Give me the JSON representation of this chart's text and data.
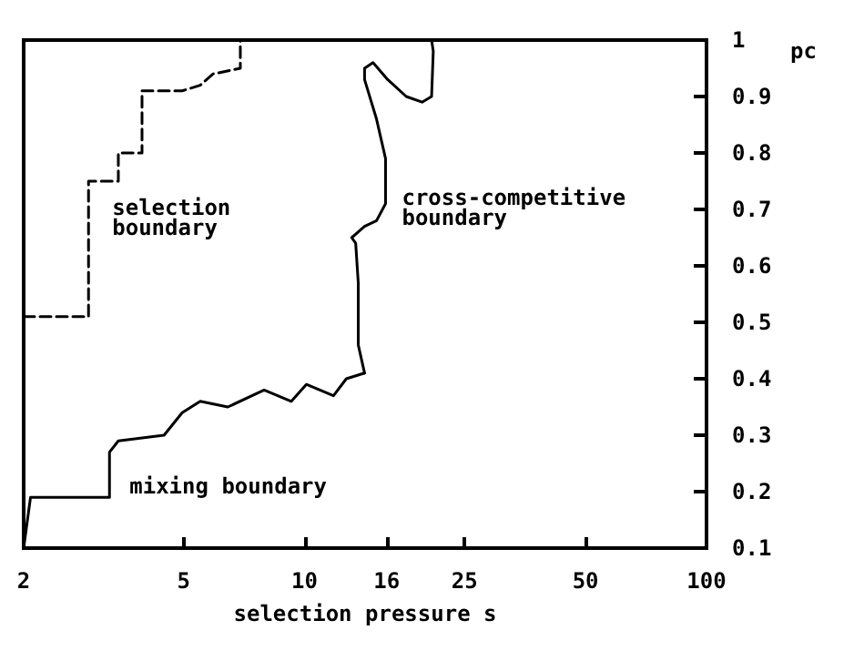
{
  "chart_data": {
    "type": "line",
    "xlabel": "selection pressure s",
    "ylabel": "pc",
    "log": "x",
    "xlim": [
      2,
      100
    ],
    "xticks": [
      2,
      5,
      10,
      16,
      25,
      50,
      100
    ],
    "ylim": [
      0.1,
      1
    ],
    "yticks": [
      0.1,
      0.2,
      0.3,
      0.4,
      0.5,
      0.6,
      0.7,
      0.8,
      0.9,
      1
    ],
    "grid": false,
    "series": [
      {
        "name": "selection boundary",
        "color": "#000000",
        "line_style": "dashed",
        "x": [
          2,
          2.9,
          2.9,
          3.44,
          3.44,
          3.62,
          3.94,
          3.94,
          4.96,
          5.5,
          5.92,
          6.92,
          6.92
        ],
        "values": [
          0.51,
          0.51,
          0.75,
          0.75,
          0.8,
          0.8,
          0.8,
          0.91,
          0.91,
          0.92,
          0.94,
          0.95,
          1.0
        ]
      },
      {
        "name": "mixing boundary",
        "color": "#000000",
        "line_style": "solid",
        "x": [
          2,
          2.08,
          3.04,
          3.27,
          3.27,
          3.44,
          4.47,
          4.96,
          5.5,
          6.44,
          7.93,
          9.27,
          10.1,
          11.8,
          12.7,
          14.1
        ],
        "values": [
          0.1,
          0.19,
          0.19,
          0.19,
          0.27,
          0.29,
          0.3,
          0.34,
          0.36,
          0.35,
          0.38,
          0.36,
          0.39,
          0.37,
          0.4,
          0.41
        ]
      },
      {
        "name": "cross-competitive boundary",
        "color": "#000000",
        "line_style": "solid",
        "x": [
          14.1,
          13.6,
          13.6,
          13.6,
          13.4,
          13.1,
          14.1,
          15.1,
          15.9,
          15.9,
          15.1,
          14.1,
          14.1,
          14.8,
          16.1,
          17.9,
          19.6,
          20.7,
          20.9,
          20.7
        ],
        "values": [
          0.41,
          0.46,
          0.49,
          0.57,
          0.64,
          0.65,
          0.67,
          0.68,
          0.71,
          0.79,
          0.86,
          0.93,
          0.95,
          0.96,
          0.93,
          0.9,
          0.89,
          0.9,
          0.98,
          1.0
        ]
      }
    ]
  }
}
